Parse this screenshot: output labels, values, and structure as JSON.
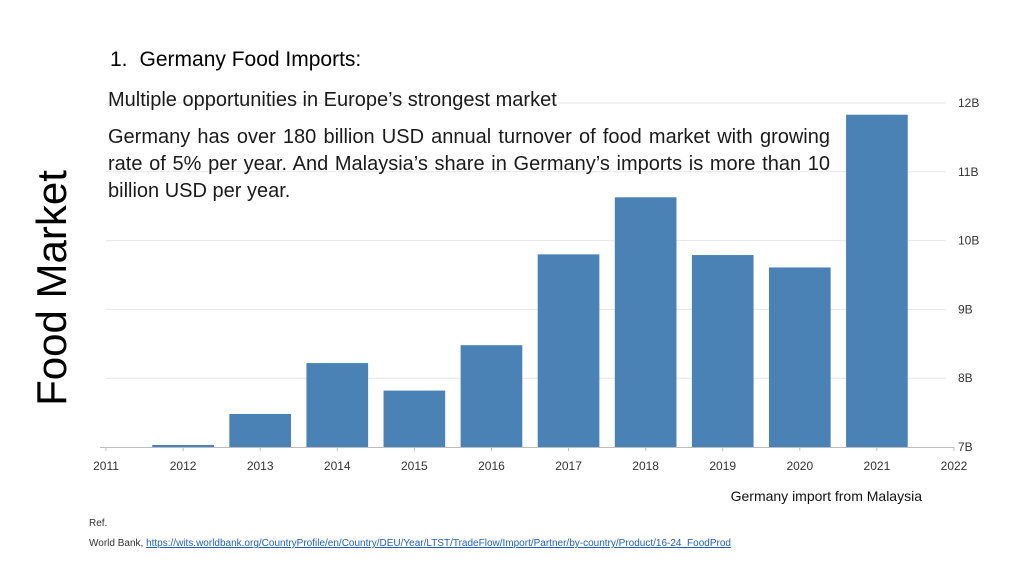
{
  "side_title": "Food Market",
  "heading": {
    "number": "1.",
    "text": "Germany Food Imports:"
  },
  "subheading": "Multiple opportunities in Europe’s strongest market",
  "paragraph": "Germany has over 180 billion USD annual turnover of food market with growing rate of 5% per year. And Malaysia’s share in Germany’s imports is more than 10 billion USD per year.",
  "caption": "Germany import from Malaysia",
  "reference": {
    "label": "Ref.",
    "source": "World Bank, ",
    "link_text": "https://wits.worldbank.org/CountryProfile/en/Country/DEU/Year/LTST/TradeFlow/Import/Partner/by-country/Product/16-24_FoodProd"
  },
  "colors": {
    "bar": "#4a82b5",
    "grid": "#e6e6e6",
    "axis": "#bdbdbd",
    "tick_text": "#333333",
    "link": "#1f5fbf"
  },
  "chart_data": {
    "type": "bar",
    "title": "",
    "xlabel": "",
    "ylabel": "",
    "x_ticks": [
      "2011",
      "2012",
      "2013",
      "2014",
      "2015",
      "2016",
      "2017",
      "2018",
      "2019",
      "2020",
      "2021",
      "2022"
    ],
    "y_ticks": [
      "7B",
      "8B",
      "9B",
      "10B",
      "11B",
      "12B"
    ],
    "y_tick_values": [
      7,
      8,
      9,
      10,
      11,
      12
    ],
    "y_axis_side": "right",
    "x_range": [
      2011,
      2022
    ],
    "ylim": [
      7,
      12
    ],
    "grid": true,
    "categories": [
      "2012",
      "2013",
      "2014",
      "2015",
      "2016",
      "2017",
      "2018",
      "2019",
      "2020",
      "2021"
    ],
    "x": [
      2012,
      2013,
      2014,
      2015,
      2016,
      2017,
      2018,
      2019,
      2020,
      2021
    ],
    "values": [
      7.03,
      7.48,
      8.22,
      7.82,
      8.48,
      9.8,
      10.63,
      9.79,
      9.61,
      11.83
    ],
    "units": "billion USD"
  }
}
